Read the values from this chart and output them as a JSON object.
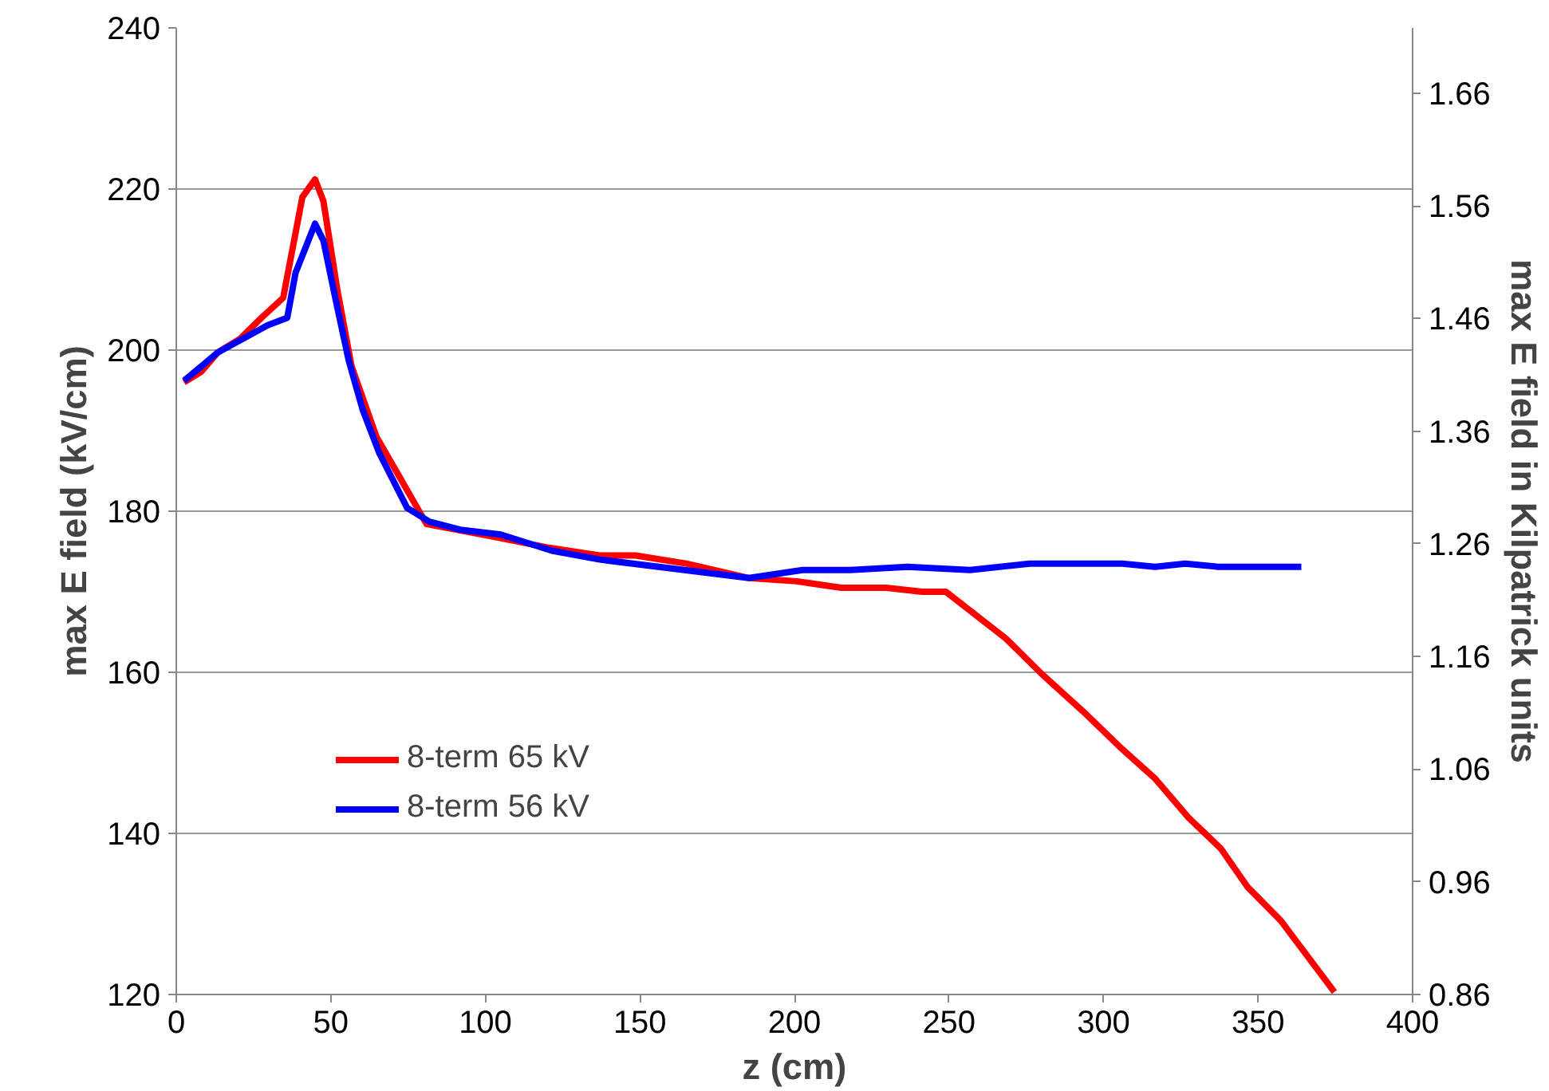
{
  "chart_data": {
    "type": "line",
    "xlabel": "z (cm)",
    "ylabel": "max E field (kV/cm)",
    "y2label": "max E field in Kilpatrick units",
    "xlim": [
      0,
      400
    ],
    "xticks": [
      0,
      50,
      100,
      150,
      200,
      250,
      300,
      350,
      400
    ],
    "ylim": [
      120,
      240
    ],
    "yticks": [
      120,
      140,
      160,
      180,
      200,
      220,
      240
    ],
    "y2lim": [
      0.86,
      1.718
    ],
    "y2ticks": [
      0.86,
      0.96,
      1.06,
      1.16,
      1.26,
      1.36,
      1.46,
      1.56,
      1.66
    ],
    "grid": "y",
    "legend": "bottom left",
    "line_style": "solid",
    "series": [
      {
        "name": "8-term 65 kV",
        "color": "#ff0000",
        "x": [
          2.5,
          8,
          13.4,
          20.6,
          27.8,
          34.6,
          40.8,
          44.9,
          47.6,
          52.1,
          56.7,
          64.8,
          72.9,
          81.0,
          96.3,
          101.8,
          120,
          137,
          148.5,
          165,
          185.3,
          200.7,
          215.2,
          229.7,
          241.3,
          249,
          268.4,
          280,
          293.5,
          305.1,
          316.7,
          327.4,
          338,
          346.7,
          357.3,
          374.7
        ],
        "values": [
          196.0,
          197.3,
          199.7,
          201.4,
          204.1,
          206.5,
          219.0,
          221.2,
          218.5,
          207.5,
          198.0,
          189.2,
          183.8,
          178.4,
          177.3,
          176.9,
          175.5,
          174.5,
          174.5,
          173.5,
          171.7,
          171.3,
          170.5,
          170.5,
          170.0,
          170.0,
          164.2,
          159.8,
          155.1,
          150.8,
          146.8,
          142.0,
          138.1,
          133.3,
          129.2,
          120.3
        ]
      },
      {
        "name": "8-term 56 kV",
        "color": "#0000ff",
        "x": [
          2.5,
          8.8,
          13.4,
          29.6,
          35.9,
          38.6,
          44.9,
          47.6,
          51.6,
          55.8,
          60.3,
          65.7,
          74.7,
          81.9,
          91.9,
          105,
          121.5,
          137,
          185.3,
          202.6,
          218.1,
          236.5,
          256.8,
          276.1,
          306.1,
          316.7,
          326.4,
          337,
          364
        ],
        "values": [
          196.2,
          198.2,
          199.7,
          203.1,
          204.0,
          209.6,
          215.7,
          213.6,
          206.2,
          198.7,
          192.6,
          187.2,
          180.4,
          178.7,
          177.7,
          177.1,
          175.1,
          174.0,
          171.7,
          172.7,
          172.7,
          173.1,
          172.7,
          173.5,
          173.5,
          173.1,
          173.5,
          173.1,
          173.1
        ]
      }
    ]
  }
}
